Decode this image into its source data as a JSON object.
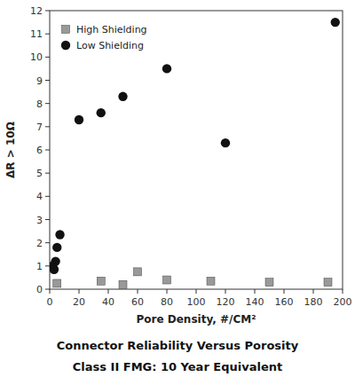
{
  "chart_data": {
    "type": "scatter",
    "title": "Connector Reliability Versus Porosity",
    "subtitle": "Class II FMG: 10 Year Equivalent",
    "x_label": "Pore Density, #/CM²",
    "y_label": "ΔR > 10Ω",
    "series": [
      {
        "name": "High Shielding",
        "color": "#999999",
        "marker": "square",
        "x": [
          5,
          35,
          50,
          60,
          80,
          110,
          150,
          190
        ],
        "values": [
          0.25,
          0.35,
          0.2,
          0.75,
          0.4,
          0.35,
          0.3,
          0.3
        ]
      },
      {
        "name": "Low Shielding",
        "color": "#111111",
        "marker": "circle",
        "x": [
          2,
          3,
          4,
          5,
          7,
          20,
          35,
          50,
          80,
          120,
          195
        ],
        "values": [
          1.0,
          0.85,
          1.2,
          1.8,
          2.35,
          7.3,
          7.6,
          8.3,
          9.5,
          6.3,
          11.5
        ]
      }
    ],
    "xlim": [
      0,
      200
    ],
    "ylim": [
      0,
      12
    ],
    "xticks": [
      0,
      20,
      40,
      60,
      80,
      100,
      120,
      140,
      160,
      180,
      200
    ],
    "yticks": [
      0,
      1,
      2,
      3,
      4,
      5,
      6,
      7,
      8,
      9,
      10,
      11,
      12
    ],
    "grid": false,
    "legend": "upper left"
  }
}
